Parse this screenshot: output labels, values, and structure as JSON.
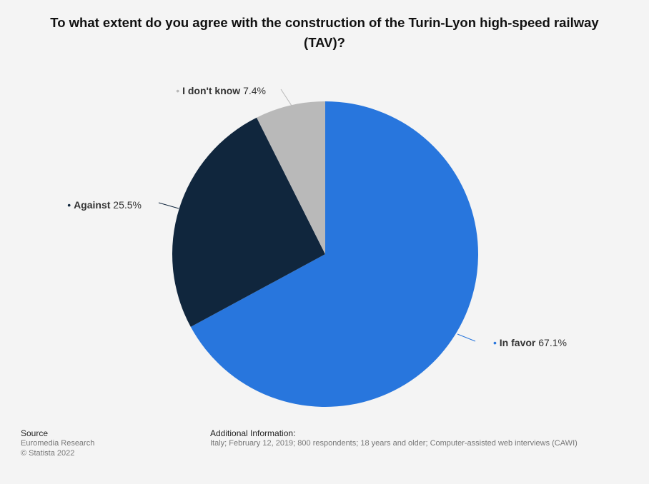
{
  "chart_data": {
    "type": "pie",
    "title": "To what extent do you agree with the construction of the Turin-Lyon high-speed railway (TAV)?",
    "slices": [
      {
        "label": "In favor",
        "value": 67.1,
        "value_label": "67.1%",
        "color": "#2876dd"
      },
      {
        "label": "Against",
        "value": 25.5,
        "value_label": "25.5%",
        "color": "#10263d"
      },
      {
        "label": "I don't know",
        "value": 7.4,
        "value_label": "7.4%",
        "color": "#b9b9b9"
      }
    ]
  },
  "footer": {
    "source_heading": "Source",
    "source_lines": [
      "Euromedia Research",
      "© Statista 2022"
    ],
    "additional_heading": "Additional Information:",
    "additional_text": "Italy; February 12, 2019; 800 respondents; 18 years and older; Computer-assisted web interviews (CAWI)"
  }
}
